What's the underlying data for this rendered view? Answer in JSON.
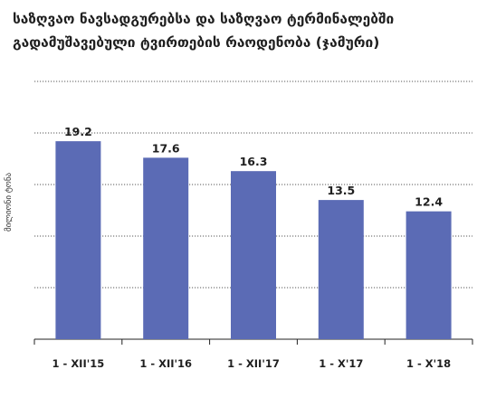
{
  "chart_data": {
    "type": "bar",
    "title_lines": [
      "საზღვაო ნავსადგურებსა და საზღვაო ტერმინალებში",
      "გადამუშავებული ტვირთების რაოდენობა (ჯამური)"
    ],
    "ylabel": "მილიონი ტონა",
    "categories": [
      "1 - XII'15",
      "1 - XII'16",
      "1 - XII'17",
      "1 - X'17",
      "1 - X'18"
    ],
    "values": [
      19.2,
      17.6,
      16.3,
      13.5,
      12.4
    ],
    "value_labels": [
      "19.2",
      "17.6",
      "16.3",
      "13.5",
      "12.4"
    ],
    "ylim": [
      0,
      25
    ],
    "grid": true,
    "bar_color": "#5b6bb5"
  }
}
